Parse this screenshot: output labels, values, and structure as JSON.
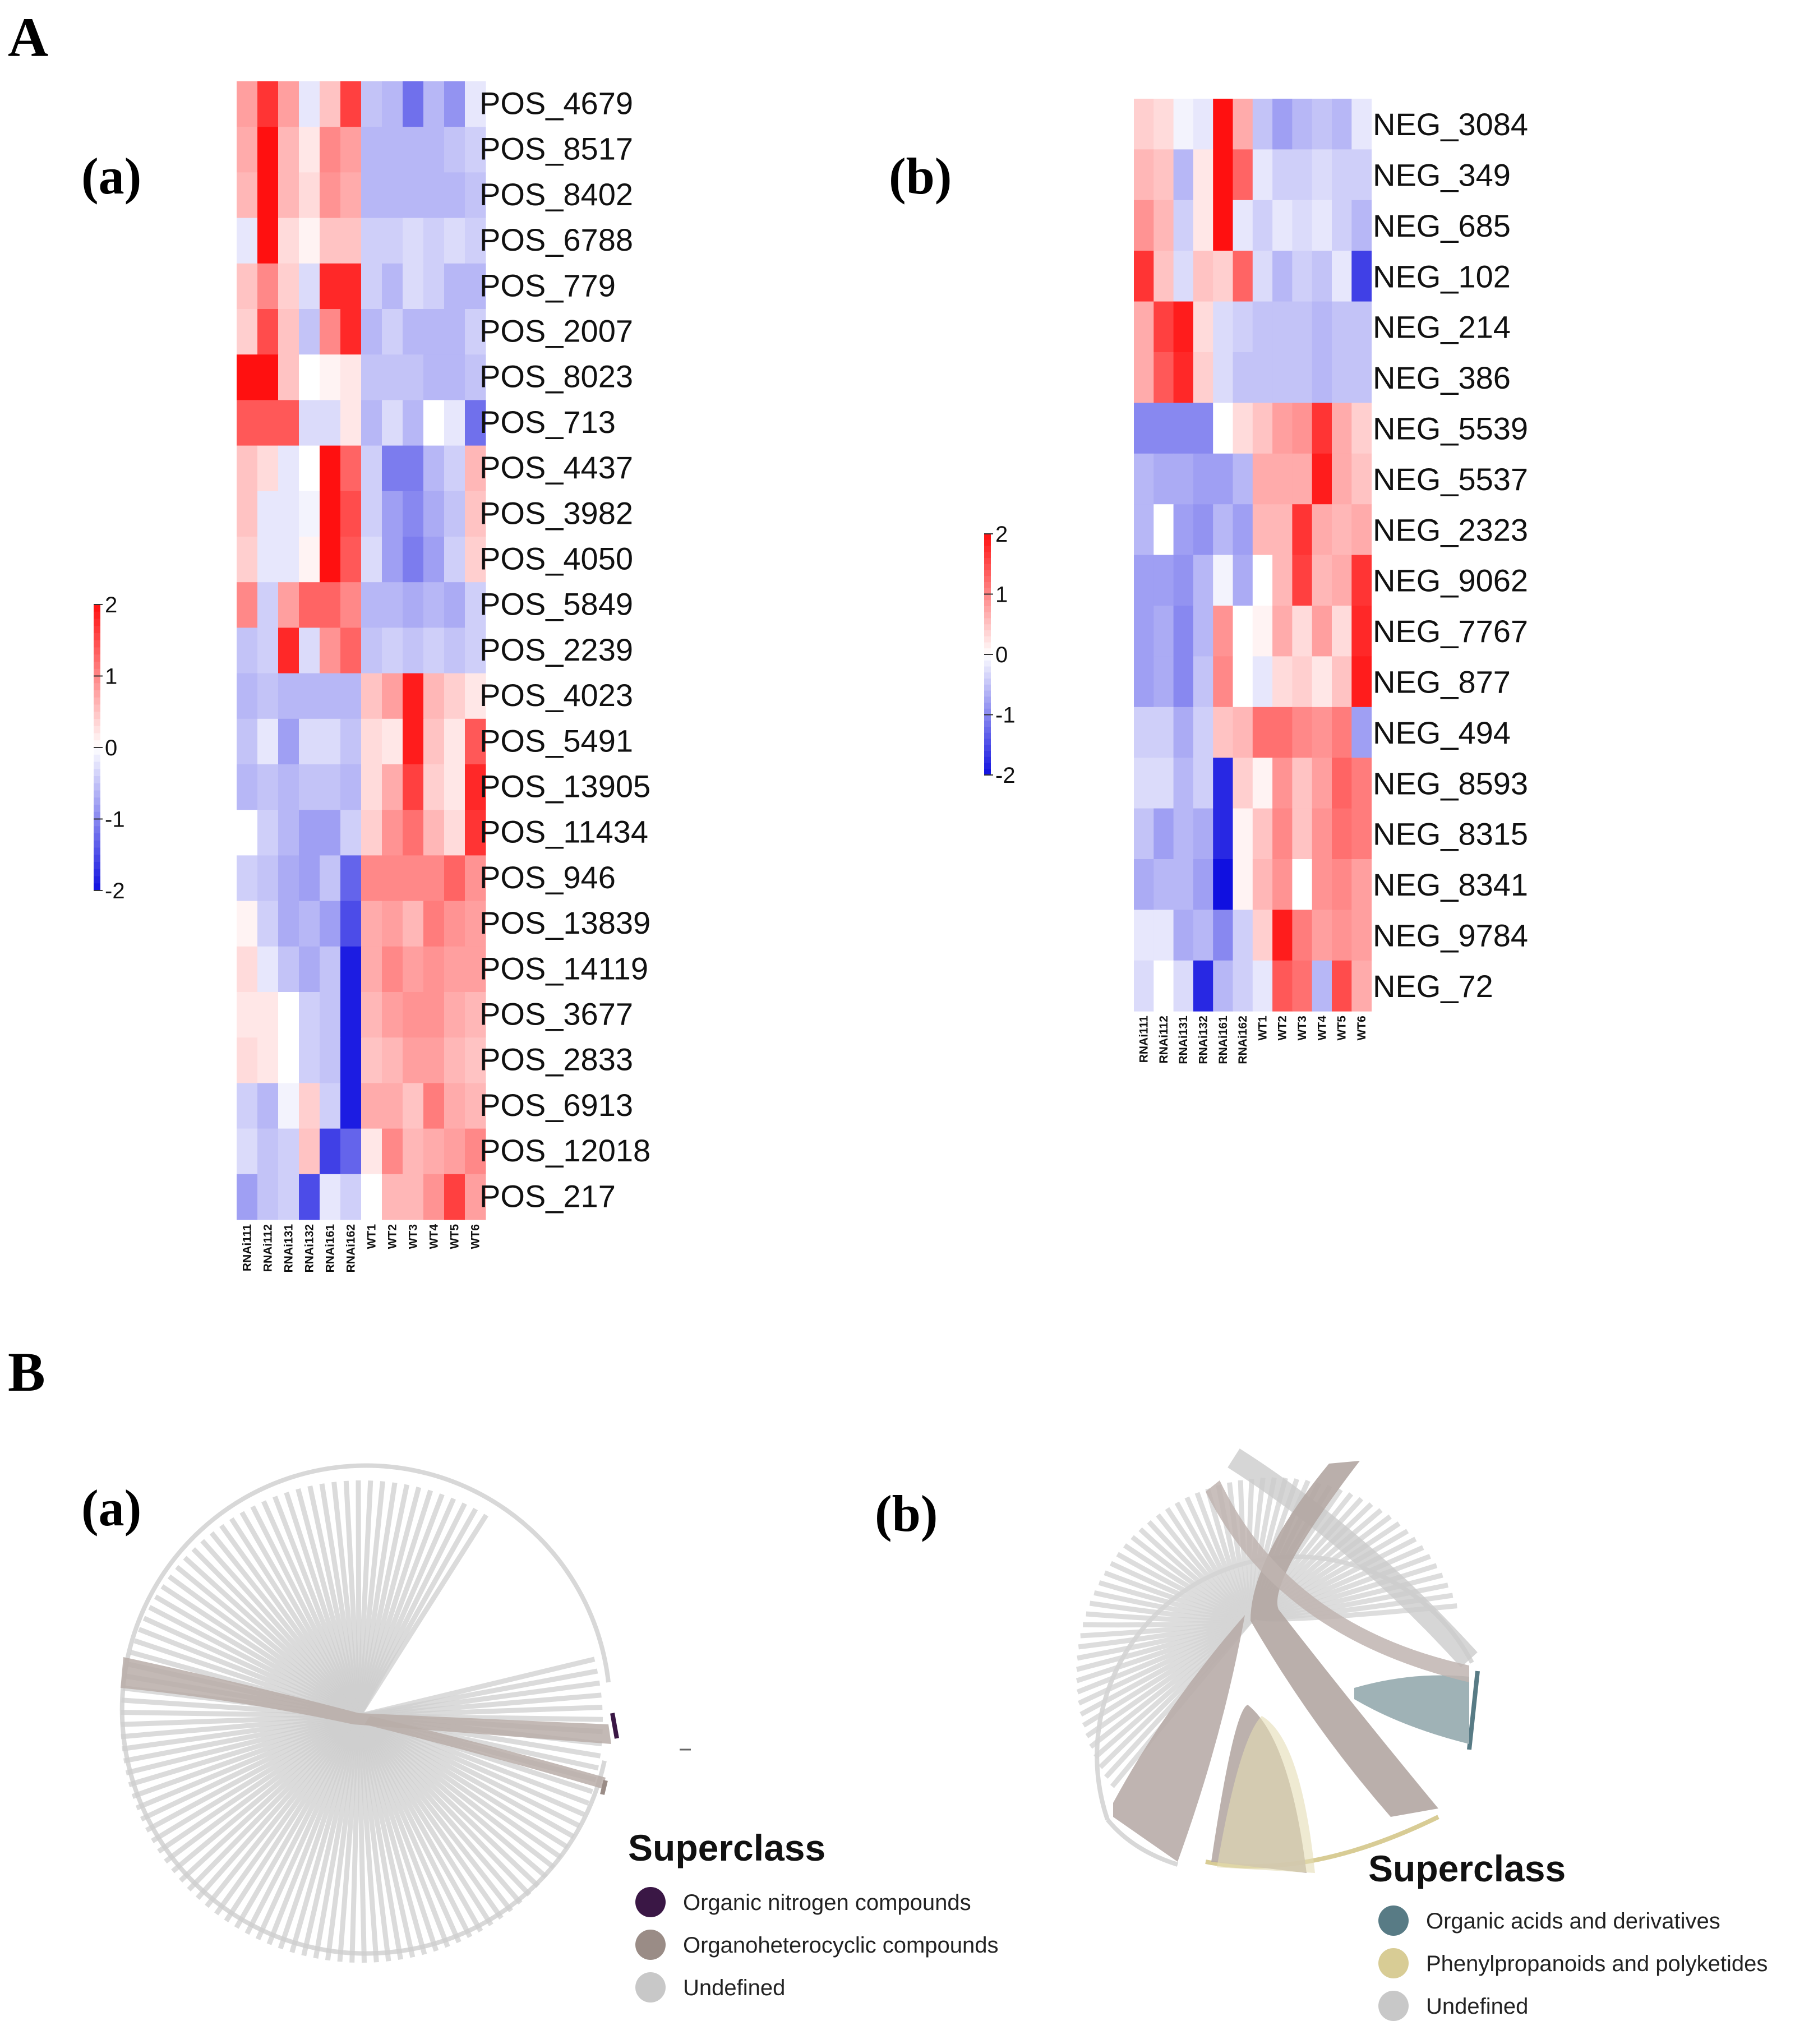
{
  "figure_labels": {
    "A": "A",
    "B": "B",
    "Aa": "(a)",
    "Ab": "(b)",
    "Ba": "(a)",
    "Bb": "(b)"
  },
  "colors": {
    "high": "#e81010",
    "mid": "#ffffff",
    "low": "#1010e0",
    "undefined": "#c8c8c8",
    "organoheterocyclic": "#9a8c86",
    "organic_nitrogen": "#3a1745",
    "organic_acids": "#587b85",
    "phenylpropanoids": "#d8cc95"
  },
  "chart_data": [
    {
      "type": "heatmap",
      "panel": "A(a)",
      "columns": [
        "RNAi111",
        "RNAi112",
        "RNAi131",
        "RNAi132",
        "RNAi161",
        "RNAi162",
        "WT1",
        "WT2",
        "WT3",
        "WT4",
        "WT5",
        "WT6"
      ],
      "rows": [
        "POS_4679",
        "POS_8517",
        "POS_8402",
        "POS_6788",
        "POS_779",
        "POS_2007",
        "POS_8023",
        "POS_713",
        "POS_4437",
        "POS_3982",
        "POS_4050",
        "POS_5849",
        "POS_2239",
        "POS_4023",
        "POS_5491",
        "POS_13905",
        "POS_11434",
        "POS_946",
        "POS_13839",
        "POS_14119",
        "POS_3677",
        "POS_2833",
        "POS_6913",
        "POS_12018",
        "POS_217"
      ],
      "color_scale": {
        "min": -2,
        "max": 2,
        "ticks": [
          "2",
          "1",
          "0",
          "-1",
          "-2"
        ]
      },
      "values": [
        [
          0.8,
          1.7,
          0.8,
          -0.2,
          0.5,
          1.6,
          -0.5,
          -0.6,
          -1.2,
          -0.6,
          -0.9,
          -0.2
        ],
        [
          0.7,
          2.0,
          0.6,
          0.2,
          1.0,
          0.8,
          -0.6,
          -0.6,
          -0.6,
          -0.6,
          -0.5,
          -0.4
        ],
        [
          0.6,
          2.0,
          0.6,
          0.3,
          0.9,
          0.7,
          -0.6,
          -0.6,
          -0.6,
          -0.6,
          -0.6,
          -0.5
        ],
        [
          -0.2,
          2.0,
          0.3,
          0.1,
          0.5,
          0.5,
          -0.4,
          -0.4,
          -0.3,
          -0.4,
          -0.3,
          -0.4
        ],
        [
          0.5,
          1.0,
          0.4,
          -0.3,
          1.8,
          1.8,
          -0.4,
          -0.6,
          -0.3,
          -0.4,
          -0.6,
          -0.6
        ],
        [
          0.4,
          1.5,
          0.5,
          -0.5,
          1.0,
          1.8,
          -0.6,
          -0.4,
          -0.6,
          -0.6,
          -0.6,
          -0.4
        ],
        [
          2.0,
          2.0,
          0.5,
          0.0,
          0.1,
          0.2,
          -0.5,
          -0.5,
          -0.5,
          -0.6,
          -0.6,
          -0.5
        ],
        [
          1.4,
          1.4,
          1.4,
          -0.3,
          -0.3,
          0.2,
          -0.6,
          -0.3,
          -0.6,
          0.0,
          -0.2,
          -1.2
        ],
        [
          0.5,
          0.3,
          -0.2,
          0.0,
          2.0,
          1.3,
          -0.4,
          -1.1,
          -1.1,
          -0.6,
          -0.4,
          0.6
        ],
        [
          0.5,
          -0.2,
          -0.2,
          -0.1,
          2.0,
          1.5,
          -0.4,
          -0.8,
          -1.0,
          -0.7,
          -0.5,
          0.5
        ],
        [
          0.4,
          -0.2,
          -0.2,
          0.1,
          2.0,
          1.4,
          -0.3,
          -0.8,
          -1.1,
          -0.8,
          -0.4,
          0.4
        ],
        [
          1.0,
          -0.4,
          0.8,
          1.3,
          1.3,
          1.0,
          -0.6,
          -0.6,
          -0.7,
          -0.6,
          -0.7,
          -0.4
        ],
        [
          -0.5,
          -0.4,
          1.8,
          -0.3,
          0.9,
          1.3,
          -0.5,
          -0.4,
          -0.5,
          -0.4,
          -0.5,
          -0.4
        ],
        [
          -0.6,
          -0.5,
          -0.6,
          -0.6,
          -0.6,
          -0.6,
          0.5,
          0.8,
          1.9,
          0.6,
          0.4,
          0.2
        ],
        [
          -0.5,
          -0.2,
          -0.8,
          -0.3,
          -0.3,
          -0.5,
          0.3,
          0.2,
          1.9,
          0.5,
          0.2,
          1.4
        ],
        [
          -0.6,
          -0.5,
          -0.6,
          -0.5,
          -0.5,
          -0.6,
          0.3,
          0.7,
          1.6,
          0.4,
          0.2,
          1.8
        ],
        [
          0.0,
          -0.4,
          -0.6,
          -0.8,
          -0.8,
          -0.4,
          0.4,
          0.9,
          1.2,
          0.6,
          0.3,
          1.7
        ],
        [
          -0.4,
          -0.5,
          -0.7,
          -0.8,
          -0.5,
          -1.3,
          1.0,
          1.0,
          1.0,
          1.0,
          1.3,
          0.9
        ],
        [
          0.1,
          -0.4,
          -0.7,
          -0.6,
          -0.8,
          -1.5,
          0.7,
          0.8,
          0.6,
          1.1,
          0.9,
          0.8
        ],
        [
          0.3,
          -0.2,
          -0.5,
          -0.7,
          -0.5,
          -1.9,
          0.7,
          1.0,
          0.8,
          0.9,
          0.8,
          0.8
        ],
        [
          0.2,
          0.2,
          0.0,
          -0.4,
          -0.5,
          -1.9,
          0.6,
          0.8,
          0.9,
          0.9,
          0.7,
          0.6
        ],
        [
          0.3,
          0.2,
          0.0,
          -0.4,
          -0.5,
          -1.9,
          0.5,
          0.6,
          0.8,
          0.8,
          0.6,
          0.5
        ],
        [
          -0.4,
          -0.6,
          -0.1,
          0.4,
          -0.4,
          -1.9,
          0.7,
          0.7,
          0.5,
          1.1,
          0.7,
          0.6
        ],
        [
          -0.3,
          -0.5,
          -0.4,
          0.5,
          -1.6,
          -1.3,
          0.2,
          1.0,
          0.6,
          0.7,
          0.8,
          1.0
        ],
        [
          -0.8,
          -0.5,
          -0.4,
          -1.5,
          -0.2,
          -0.4,
          0.0,
          0.6,
          0.6,
          0.9,
          1.6,
          0.8
        ]
      ]
    },
    {
      "type": "heatmap",
      "panel": "A(b)",
      "columns": [
        "RNAi111",
        "RNAi112",
        "RNAi131",
        "RNAi132",
        "RNAi161",
        "RNAi162",
        "WT1",
        "WT2",
        "WT3",
        "WT4",
        "WT5",
        "WT6"
      ],
      "rows": [
        "NEG_3084",
        "NEG_349",
        "NEG_685",
        "NEG_102",
        "NEG_214",
        "NEG_386",
        "NEG_5539",
        "NEG_5537",
        "NEG_2323",
        "NEG_9062",
        "NEG_7767",
        "NEG_877",
        "NEG_494",
        "NEG_8593",
        "NEG_8315",
        "NEG_8341",
        "NEG_9784",
        "NEG_72"
      ],
      "color_scale": {
        "min": -2,
        "max": 2,
        "ticks": [
          "2",
          "1",
          "0",
          "-1",
          "-2"
        ]
      },
      "values": [
        [
          0.4,
          0.3,
          -0.1,
          -0.2,
          2.0,
          0.7,
          -0.5,
          -0.8,
          -0.6,
          -0.5,
          -0.6,
          -0.2
        ],
        [
          0.6,
          0.5,
          -0.6,
          0.2,
          2.0,
          1.3,
          -0.2,
          -0.4,
          -0.4,
          -0.3,
          -0.4,
          -0.4
        ],
        [
          0.9,
          0.6,
          -0.4,
          0.2,
          2.0,
          -0.2,
          -0.4,
          -0.2,
          -0.3,
          -0.2,
          -0.4,
          -0.6
        ],
        [
          1.7,
          0.5,
          -0.3,
          0.5,
          0.4,
          1.3,
          -0.3,
          -0.6,
          -0.4,
          -0.5,
          -0.2,
          -1.6
        ],
        [
          0.7,
          1.6,
          1.9,
          0.3,
          -0.3,
          -0.4,
          -0.5,
          -0.5,
          -0.5,
          -0.6,
          -0.5,
          -0.5
        ],
        [
          0.7,
          1.4,
          1.8,
          0.4,
          -0.3,
          -0.5,
          -0.5,
          -0.5,
          -0.5,
          -0.6,
          -0.5,
          -0.5
        ],
        [
          -1.0,
          -1.0,
          -1.0,
          -1.0,
          0.0,
          0.3,
          0.5,
          0.8,
          0.9,
          1.7,
          0.7,
          0.4
        ],
        [
          -0.6,
          -0.7,
          -0.7,
          -0.8,
          -0.8,
          -0.6,
          0.7,
          0.7,
          0.7,
          1.9,
          0.7,
          0.5
        ],
        [
          -0.6,
          0.0,
          -0.8,
          -0.9,
          -0.6,
          -0.8,
          0.6,
          0.6,
          1.7,
          0.7,
          0.6,
          0.7
        ],
        [
          -0.8,
          -0.8,
          -0.9,
          -0.6,
          -0.1,
          -0.7,
          0.0,
          0.6,
          1.6,
          0.6,
          0.7,
          1.7
        ],
        [
          -0.8,
          -0.7,
          -1.0,
          -0.6,
          0.9,
          0.0,
          0.1,
          0.7,
          0.3,
          0.8,
          0.3,
          1.8
        ],
        [
          -0.8,
          -0.7,
          -1.0,
          -0.5,
          1.0,
          0.0,
          -0.2,
          0.3,
          0.4,
          0.2,
          0.5,
          1.9
        ],
        [
          -0.4,
          -0.4,
          -0.7,
          -0.4,
          0.5,
          0.6,
          1.2,
          1.2,
          1.0,
          0.9,
          1.1,
          -0.8
        ],
        [
          -0.3,
          -0.3,
          -0.6,
          -0.4,
          -1.8,
          0.4,
          0.1,
          0.9,
          0.5,
          0.8,
          1.3,
          1.1
        ],
        [
          -0.5,
          -0.8,
          -0.6,
          -0.7,
          -1.8,
          0.1,
          0.5,
          1.0,
          0.5,
          0.9,
          1.2,
          1.1
        ],
        [
          -0.7,
          -0.6,
          -0.6,
          -0.8,
          -2.0,
          0.1,
          0.6,
          0.9,
          0.0,
          0.9,
          1.0,
          0.8
        ],
        [
          -0.2,
          -0.2,
          -0.7,
          -0.6,
          -1.0,
          -0.4,
          0.4,
          1.9,
          1.1,
          0.8,
          0.9,
          0.8
        ],
        [
          -0.3,
          0.0,
          -0.3,
          -1.8,
          -0.6,
          -0.4,
          -0.2,
          1.4,
          1.2,
          -0.6,
          1.5,
          0.7
        ]
      ]
    },
    {
      "type": "chord",
      "panel": "B(a)",
      "legend_title": "Superclass",
      "legend": [
        "Organic nitrogen compounds",
        "Organoheterocyclic compounds",
        "Undefined"
      ]
    },
    {
      "type": "chord",
      "panel": "B(b)",
      "legend_title": "Superclass",
      "legend": [
        "Organic acids and derivatives",
        "Phenylpropanoids and polyketides",
        "Undefined"
      ]
    }
  ]
}
